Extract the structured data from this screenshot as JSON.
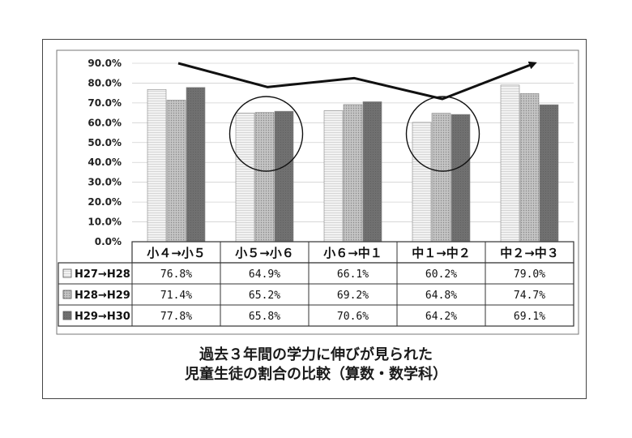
{
  "caption": {
    "line1": "過去３年間の学力に伸びが見られた",
    "line2": "児童生徒の割合の比較（算数・数学科）"
  },
  "chart_data": {
    "type": "bar",
    "title": "過去３年間の学力に伸びが見られた児童生徒の割合の比較（算数・数学科）",
    "categories": [
      "小４→小５",
      "小５→小６",
      "小６→中１",
      "中１→中２",
      "中２→中３"
    ],
    "y_ticks": [
      "0.0%",
      "10.0%",
      "20.0%",
      "30.0%",
      "40.0%",
      "50.0%",
      "60.0%",
      "70.0%",
      "80.0%",
      "90.0%"
    ],
    "ylim": [
      0,
      90
    ],
    "grid": true,
    "legend": "data-table-rows",
    "series": [
      {
        "name": "H27→H28",
        "values": [
          76.8,
          64.9,
          66.1,
          60.2,
          79.0
        ],
        "labels": [
          "76.8%",
          "64.9%",
          "66.1%",
          "60.2%",
          "79.0%"
        ],
        "color": "#eeeeee"
      },
      {
        "name": "H28→H29",
        "values": [
          71.4,
          65.2,
          69.2,
          64.8,
          74.7
        ],
        "labels": [
          "71.4%",
          "65.2%",
          "69.2%",
          "64.8%",
          "74.7%"
        ],
        "color": "#b4b4b4"
      },
      {
        "name": "H29→H30",
        "values": [
          77.8,
          65.8,
          70.6,
          64.2,
          69.1
        ],
        "labels": [
          "77.8%",
          "65.8%",
          "70.6%",
          "64.2%",
          "69.1%"
        ],
        "color": "#6e6e6e"
      }
    ],
    "trend_line": {
      "values": [
        90,
        78,
        82.5,
        72,
        90
      ],
      "arrow": true
    },
    "highlight_circles": [
      "小５→小６",
      "中１→中２"
    ]
  }
}
